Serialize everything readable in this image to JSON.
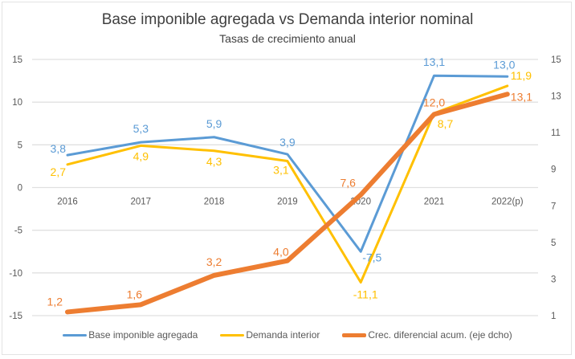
{
  "chart_data": {
    "type": "line",
    "title": "Base imponible agregada vs Demanda interior nominal",
    "subtitle": "Tasas de crecimiento anual",
    "categories": [
      "2016",
      "2017",
      "2018",
      "2019",
      "2020",
      "2021",
      "2022(p)"
    ],
    "y_left": {
      "ylim": [
        -15,
        15
      ],
      "ticks": [
        "15",
        "10",
        "5",
        "0",
        "-5",
        "-10",
        "-15"
      ],
      "tick_values": [
        15,
        10,
        5,
        0,
        -5,
        -10,
        -15
      ]
    },
    "y_right": {
      "ylim": [
        1,
        15
      ],
      "ticks": [
        "15",
        "13",
        "11",
        "9",
        "7",
        "5",
        "3",
        "1"
      ],
      "tick_values": [
        15,
        13,
        11,
        9,
        7,
        5,
        3,
        1
      ]
    },
    "grid": true,
    "legend_position": "bottom",
    "series": [
      {
        "name": "Base imponible agregada",
        "axis": "left",
        "color": "#5b9bd5",
        "values": [
          3.8,
          5.3,
          5.9,
          3.9,
          -7.5,
          13.1,
          13.0
        ],
        "labels": [
          "3,8",
          "5,3",
          "5,9",
          "3,9",
          "-7,5",
          "13,1",
          "13,0"
        ]
      },
      {
        "name": "Demanda interior",
        "axis": "left",
        "color": "#ffc000",
        "values": [
          2.7,
          4.9,
          4.3,
          3.1,
          -11.1,
          8.7,
          11.9
        ],
        "labels": [
          "2,7",
          "4,9",
          "4,3",
          "3,1",
          "-11,1",
          "8,7",
          "11,9"
        ]
      },
      {
        "name": "Crec. diferencial acum. (eje dcho)",
        "axis": "right",
        "color": "#ed7d31",
        "values": [
          1.2,
          1.6,
          3.2,
          4.0,
          7.6,
          12.0,
          13.1
        ],
        "labels": [
          "1,2",
          "1,6",
          "3,2",
          "4,0",
          "7,6",
          "12,0",
          "13,1"
        ]
      }
    ]
  }
}
